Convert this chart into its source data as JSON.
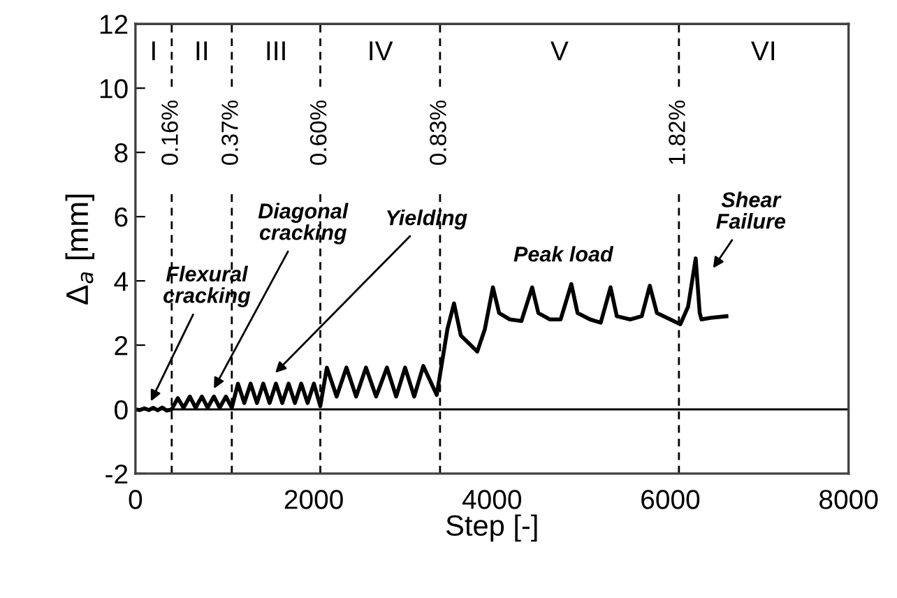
{
  "chart_data": {
    "type": "line",
    "xlabel": "Step [-]",
    "ylabel": "Δ$_{a}$ [mm]",
    "x": [
      0,
      50,
      100,
      150,
      200,
      250,
      300,
      350,
      407,
      475,
      540,
      610,
      675,
      745,
      810,
      880,
      945,
      1015,
      1081,
      1150,
      1221,
      1292,
      1363,
      1434,
      1505,
      1576,
      1647,
      1718,
      1789,
      1860,
      1931,
      2002,
      2074,
      2147,
      2257,
      2367,
      2476,
      2586,
      2700,
      2821,
      2925,
      3025,
      3127,
      3229,
      3380,
      3500,
      3574,
      3650,
      3835,
      3920,
      4010,
      4080,
      4200,
      4330,
      4450,
      4520,
      4650,
      4770,
      4890,
      4960,
      5100,
      5220,
      5330,
      5400,
      5550,
      5680,
      5770,
      5850,
      6000,
      6113,
      6200,
      6285,
      6330,
      6350,
      6450,
      6630
    ],
    "series": [
      {
        "color": "#000000",
        "values": [
          0,
          -0.02,
          0.03,
          -0.02,
          0.05,
          -0.03,
          0.06,
          -0.04,
          0.0,
          0.35,
          0.05,
          0.4,
          0.05,
          0.4,
          0.05,
          0.4,
          0.05,
          0.4,
          0.05,
          0.8,
          0.2,
          0.8,
          0.2,
          0.8,
          0.2,
          0.8,
          0.2,
          0.8,
          0.2,
          0.8,
          0.2,
          0.8,
          0.1,
          1.3,
          0.4,
          1.3,
          0.4,
          1.3,
          0.4,
          1.3,
          0.4,
          1.3,
          0.4,
          1.35,
          0.45,
          2.5,
          3.3,
          2.3,
          1.8,
          2.5,
          3.8,
          3.0,
          2.8,
          2.75,
          3.8,
          3.0,
          2.8,
          2.8,
          3.9,
          3.0,
          2.8,
          2.7,
          3.8,
          2.9,
          2.8,
          2.9,
          3.85,
          3.0,
          2.8,
          2.65,
          3.2,
          4.7,
          3.0,
          2.8,
          2.85,
          2.9
        ]
      }
    ],
    "xlim": [
      0,
      8000
    ],
    "xticks": [
      0,
      2000,
      4000,
      6000,
      8000
    ],
    "ylim": [
      -2,
      12
    ],
    "yticks": [
      -2,
      0,
      2,
      4,
      6,
      8,
      10,
      12
    ],
    "grid": false,
    "legend": false,
    "marker": "none",
    "line_style": "solid",
    "ref_lines": [
      {
        "axis": "y",
        "value": 0,
        "line_style": "solid",
        "color": "#000000"
      },
      {
        "axis": "x",
        "value": 407,
        "line_style": "dashed",
        "color": "#000000"
      },
      {
        "axis": "x",
        "value": 1081,
        "line_style": "dashed",
        "color": "#000000"
      },
      {
        "axis": "x",
        "value": 2074,
        "line_style": "dashed",
        "color": "#000000"
      },
      {
        "axis": "x",
        "value": 3417,
        "line_style": "dashed",
        "color": "#000000"
      },
      {
        "axis": "x",
        "value": 6097,
        "line_style": "dashed",
        "color": "#000000"
      }
    ],
    "annotations": [
      "I",
      "II",
      "III",
      "IV",
      "V",
      "VI",
      "0.16%",
      "0.37%",
      "0.60%",
      "0.83%",
      "1.82%",
      "Flexural\ncracking",
      "Diagonal\ncracking",
      "Yielding",
      "Peak load",
      "Shear\nFailure"
    ]
  }
}
